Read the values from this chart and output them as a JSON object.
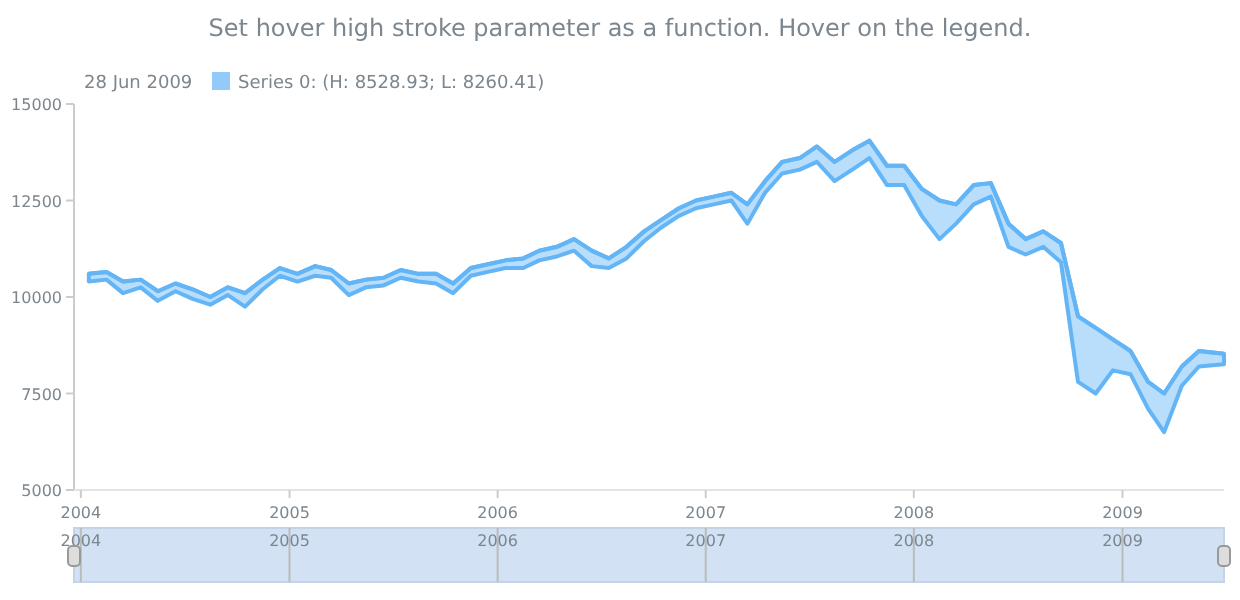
{
  "chart_data": {
    "type": "line",
    "title": "Set hover high stroke parameter as a function. Hover on the legend.",
    "legend_title": "28 Jun 2009",
    "legend": "top left",
    "ylim": [
      5000,
      15000
    ],
    "yticks": [
      5000,
      7500,
      10000,
      12500,
      15000
    ],
    "xlim": [
      "2003-12-20",
      "2009-06-28"
    ],
    "xticks": [
      {
        "value": "2004-01-01",
        "label": "2004"
      },
      {
        "value": "2005-01-01",
        "label": "2005"
      },
      {
        "value": "2006-01-01",
        "label": "2006"
      },
      {
        "value": "2007-01-01",
        "label": "2007"
      },
      {
        "value": "2008-01-01",
        "label": "2008"
      },
      {
        "value": "2009-01-01",
        "label": "2009"
      }
    ],
    "x2ticks": [
      {
        "value": "2004-01-01",
        "label": "2004"
      },
      {
        "value": "2005-01-01",
        "label": "2005"
      },
      {
        "value": "2006-01-01",
        "label": "2006"
      },
      {
        "value": "2007-01-01",
        "label": "2007"
      },
      {
        "value": "2008-01-01",
        "label": "2008"
      },
      {
        "value": "2009-01-01",
        "label": "2009"
      }
    ],
    "x": [
      "2004-01-15",
      "2004-02-15",
      "2004-03-15",
      "2004-04-15",
      "2004-05-15",
      "2004-06-15",
      "2004-07-15",
      "2004-08-15",
      "2004-09-15",
      "2004-10-15",
      "2004-11-15",
      "2004-12-15",
      "2005-01-15",
      "2005-02-15",
      "2005-03-15",
      "2005-04-15",
      "2005-05-15",
      "2005-06-15",
      "2005-07-15",
      "2005-08-15",
      "2005-09-15",
      "2005-10-15",
      "2005-11-15",
      "2005-12-15",
      "2006-01-15",
      "2006-02-15",
      "2006-03-15",
      "2006-04-15",
      "2006-05-15",
      "2006-06-15",
      "2006-07-15",
      "2006-08-15",
      "2006-09-15",
      "2006-10-15",
      "2006-11-15",
      "2006-12-15",
      "2007-01-15",
      "2007-02-15",
      "2007-03-15",
      "2007-04-15",
      "2007-05-15",
      "2007-06-15",
      "2007-07-15",
      "2007-08-15",
      "2007-09-15",
      "2007-10-15",
      "2007-11-15",
      "2007-12-15",
      "2008-01-15",
      "2008-02-15",
      "2008-03-15",
      "2008-04-15",
      "2008-05-15",
      "2008-06-15",
      "2008-07-15",
      "2008-08-15",
      "2008-09-15",
      "2008-10-15",
      "2008-11-15",
      "2008-12-15",
      "2009-01-15",
      "2009-02-15",
      "2009-03-15",
      "2009-04-15",
      "2009-05-15",
      "2009-06-28"
    ],
    "x2lim": [
      "2003-12-20",
      "2009-06-28"
    ],
    "series": [
      {
        "name": "Series 0: (H: 8528.93; L: 8260.41)",
        "color": "#64b5f6",
        "upper": [
          10600,
          10650,
          10400,
          10450,
          10150,
          10350,
          10200,
          10000,
          10250,
          10100,
          10450,
          10750,
          10600,
          10800,
          10700,
          10350,
          10450,
          10500,
          10700,
          10600,
          10600,
          10350,
          10750,
          10850,
          10950,
          11000,
          11200,
          11300,
          11500,
          11200,
          11000,
          11300,
          11700,
          12000,
          12300,
          12500,
          12600,
          12700,
          12400,
          13000,
          13500,
          13600,
          13900,
          13500,
          13800,
          14050,
          13400,
          13400,
          12800,
          12500,
          12400,
          12900,
          12950,
          11900,
          11500,
          11700,
          11400,
          9500,
          9200,
          8900,
          8600,
          7800,
          7500,
          8200,
          8600,
          8528.93
        ],
        "values": [
          10600,
          10650,
          10400,
          10450,
          10150,
          10350,
          10200,
          10000,
          10250,
          10100,
          10450,
          10750,
          10600,
          10800,
          10700,
          10350,
          10450,
          10500,
          10700,
          10600,
          10600,
          10350,
          10750,
          10850,
          10950,
          11000,
          11200,
          11300,
          11500,
          11200,
          11000,
          11300,
          11700,
          12000,
          12300,
          12500,
          12600,
          12700,
          12400,
          13000,
          13500,
          13600,
          13900,
          13500,
          13800,
          14050,
          13400,
          13400,
          12800,
          12500,
          12400,
          12900,
          12950,
          11900,
          11500,
          11700,
          11400,
          9500,
          9200,
          8900,
          8600,
          7800,
          7500,
          8200,
          8600,
          8528.93
        ],
        "lower": [
          10400,
          10450,
          10100,
          10250,
          9900,
          10150,
          9950,
          9800,
          10050,
          9750,
          10200,
          10550,
          10400,
          10550,
          10500,
          10050,
          10250,
          10300,
          10500,
          10400,
          10350,
          10100,
          10550,
          10650,
          10750,
          10750,
          10950,
          11050,
          11200,
          10800,
          10750,
          11000,
          11450,
          11800,
          12100,
          12300,
          12400,
          12500,
          11900,
          12700,
          13200,
          13300,
          13500,
          13000,
          13300,
          13600,
          12900,
          12900,
          12100,
          11500,
          11900,
          12400,
          12600,
          11300,
          11100,
          11300,
          10900,
          7800,
          7500,
          8100,
          8000,
          7100,
          6500,
          7700,
          8200,
          8260.41
        ]
      }
    ]
  }
}
